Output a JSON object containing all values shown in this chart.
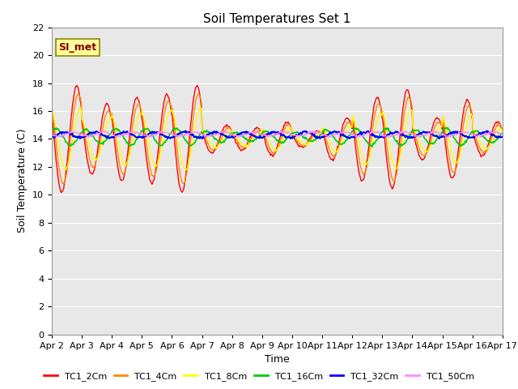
{
  "title": "Soil Temperatures Set 1",
  "xlabel": "Time",
  "ylabel": "Soil Temperature (C)",
  "ylim": [
    0,
    22
  ],
  "yticks": [
    0,
    2,
    4,
    6,
    8,
    10,
    12,
    14,
    16,
    18,
    20,
    22
  ],
  "x_labels": [
    "Apr 2",
    "Apr 3",
    "Apr 4",
    "Apr 5",
    "Apr 6",
    "Apr 7",
    "Apr 8",
    "Apr 9",
    "Apr 10",
    "Apr 11",
    "Apr 12",
    "Apr 13",
    "Apr 14",
    "Apr 15",
    "Apr 16",
    "Apr 17"
  ],
  "annotation_text": "SI_met",
  "series_colors": [
    "#FF0000",
    "#FF8800",
    "#FFFF00",
    "#00CC00",
    "#0000FF",
    "#FF88FF"
  ],
  "series_labels": [
    "TC1_2Cm",
    "TC1_4Cm",
    "TC1_8Cm",
    "TC1_16Cm",
    "TC1_32Cm",
    "TC1_50Cm"
  ],
  "background_color": "#E8E8E8",
  "grid_color": "#FFFFFF",
  "title_fontsize": 11,
  "axis_label_fontsize": 9,
  "tick_fontsize": 8,
  "days": 15,
  "pts_per_day": 48,
  "base_temp": 14.0,
  "day_amps_2cm": [
    3.8,
    2.5,
    3.0,
    3.2,
    3.8,
    1.0,
    0.8,
    1.2,
    0.6,
    1.5,
    3.0,
    3.5,
    1.5,
    2.8,
    1.2
  ],
  "day_amps_4cm": [
    3.2,
    2.0,
    2.5,
    2.7,
    3.2,
    0.8,
    0.6,
    1.0,
    0.5,
    1.2,
    2.5,
    3.0,
    1.2,
    2.4,
    1.0
  ],
  "day_amps_8cm": [
    2.2,
    1.5,
    1.8,
    2.0,
    2.2,
    0.6,
    0.5,
    0.8,
    0.4,
    0.9,
    1.8,
    2.1,
    0.9,
    1.7,
    0.7
  ],
  "day_amps_16cm": [
    0.6,
    0.5,
    0.6,
    0.6,
    0.6,
    0.4,
    0.3,
    0.4,
    0.3,
    0.5,
    0.6,
    0.6,
    0.5,
    0.6,
    0.4
  ],
  "day_amps_32cm": [
    0.2,
    0.2,
    0.2,
    0.2,
    0.2,
    0.2,
    0.2,
    0.2,
    0.2,
    0.2,
    0.2,
    0.2,
    0.2,
    0.2,
    0.2
  ],
  "day_amps_50cm": [
    0.15,
    0.15,
    0.15,
    0.15,
    0.15,
    0.15,
    0.15,
    0.15,
    0.15,
    0.15,
    0.15,
    0.15,
    0.15,
    0.15,
    0.15
  ],
  "phase_lags": [
    0.0,
    0.05,
    0.12,
    0.3,
    0.6,
    0.9
  ],
  "base_offsets": [
    0.0,
    0.0,
    0.0,
    0.15,
    0.3,
    0.35
  ]
}
